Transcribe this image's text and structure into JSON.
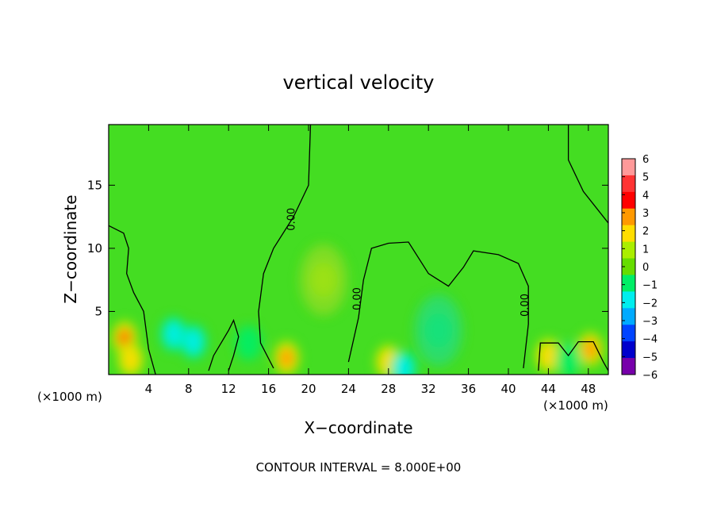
{
  "chart_data": {
    "type": "heatmap",
    "title": "vertical velocity",
    "xlabel": "X−coordinate",
    "ylabel": "Z−coordinate",
    "x_unit_left": "(×1000 m)",
    "x_unit_right": "(×1000 m)",
    "footer": "CONTOUR INTERVAL = 8.000E+00",
    "contour_label": "0.00",
    "xlim": [
      0,
      50
    ],
    "ylim": [
      0,
      19.8
    ],
    "x_ticks": [
      4,
      8,
      12,
      16,
      20,
      24,
      28,
      32,
      36,
      40,
      44,
      48
    ],
    "y_ticks": [
      5,
      10,
      15
    ],
    "colorbar": {
      "range": [
        -6,
        6
      ],
      "labels": [
        "6",
        "5",
        "4",
        "3",
        "2",
        "1",
        "0",
        "−1",
        "−2",
        "−3",
        "−4",
        "−5",
        "−6"
      ],
      "colors": [
        "#ff9999",
        "#ff3333",
        "#ff0000",
        "#ff9900",
        "#ffdd00",
        "#aaee00",
        "#66dd00",
        "#00ee66",
        "#00eeee",
        "#00aaff",
        "#0044ff",
        "#0000cc",
        "#7700aa"
      ]
    },
    "background_value": 0,
    "features": [
      {
        "x": 1.6,
        "z": 2.9,
        "amplitude": 3.5
      },
      {
        "x": 2.2,
        "z": 1.2,
        "amplitude": 2.0
      },
      {
        "x": 17.8,
        "z": 1.3,
        "amplitude": 3.0
      },
      {
        "x": 48.2,
        "z": 2.0,
        "amplitude": 3.0
      },
      {
        "x": 44.0,
        "z": 1.5,
        "amplitude": 1.5
      },
      {
        "x": 21.5,
        "z": 7.5,
        "amplitude": 0.8
      },
      {
        "x": 28.0,
        "z": 1.0,
        "amplitude": 1.5
      },
      {
        "x": 6.5,
        "z": 3.2,
        "amplitude": -1.8
      },
      {
        "x": 8.5,
        "z": 2.6,
        "amplitude": -1.5
      },
      {
        "x": 14.0,
        "z": 2.5,
        "amplitude": -1.0
      },
      {
        "x": 33.0,
        "z": 3.5,
        "amplitude": -0.8
      },
      {
        "x": 29.5,
        "z": 0.5,
        "amplitude": -1.2
      },
      {
        "x": 46.0,
        "z": 1.2,
        "amplitude": -1.0
      }
    ],
    "contours": [
      [
        [
          0.0,
          11.8
        ],
        [
          1.5,
          11.2
        ],
        [
          2.0,
          10.0
        ],
        [
          1.8,
          8.0
        ],
        [
          2.5,
          6.5
        ],
        [
          3.5,
          5.0
        ],
        [
          4.0,
          2.0
        ],
        [
          4.7,
          0.0
        ]
      ],
      [
        [
          20.2,
          19.8
        ],
        [
          20.0,
          15.0
        ],
        [
          18.5,
          12.5
        ],
        [
          16.5,
          10.0
        ],
        [
          15.5,
          8.0
        ],
        [
          15.0,
          5.0
        ],
        [
          15.2,
          2.5
        ],
        [
          16.5,
          0.5
        ]
      ],
      [
        [
          46.0,
          19.8
        ],
        [
          46.0,
          17.0
        ],
        [
          47.5,
          14.5
        ],
        [
          50.0,
          12.0
        ]
      ],
      [
        [
          24.0,
          1.0
        ],
        [
          25.0,
          4.5
        ],
        [
          25.5,
          7.5
        ],
        [
          26.3,
          10.0
        ],
        [
          28.0,
          10.4
        ],
        [
          30.0,
          10.5
        ],
        [
          32.0,
          8.0
        ],
        [
          34.0,
          7.0
        ],
        [
          35.5,
          8.5
        ],
        [
          36.5,
          9.8
        ],
        [
          39.0,
          9.5
        ],
        [
          41.0,
          8.8
        ],
        [
          42.0,
          7.0
        ],
        [
          42.0,
          4.0
        ],
        [
          41.5,
          0.5
        ]
      ],
      [
        [
          10.0,
          0.3
        ],
        [
          10.5,
          1.5
        ],
        [
          12.0,
          3.5
        ],
        [
          12.5,
          4.3
        ],
        [
          13.0,
          3.0
        ],
        [
          12.5,
          1.5
        ],
        [
          12.0,
          0.3
        ]
      ],
      [
        [
          43.0,
          0.3
        ],
        [
          43.2,
          2.5
        ],
        [
          45.0,
          2.5
        ],
        [
          46.0,
          1.5
        ],
        [
          47.0,
          2.6
        ],
        [
          48.5,
          2.6
        ],
        [
          49.5,
          1.0
        ],
        [
          50.0,
          0.3
        ]
      ]
    ]
  }
}
